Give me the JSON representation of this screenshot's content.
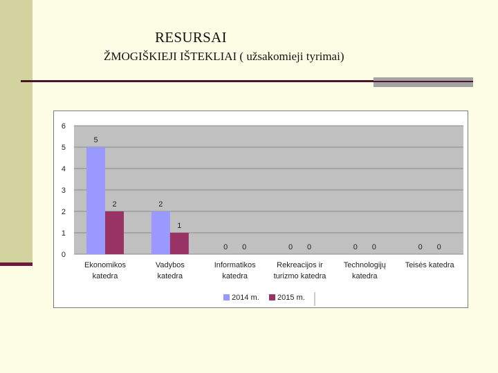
{
  "slide": {
    "title": "RESURSAI",
    "subtitle": "ŽMOGIŠKIEJI IŠTEKLIAI ( užsakomieji tyrimai)"
  },
  "colors": {
    "background": "#fdfde6",
    "accent_bar": "#d3d3a0",
    "rule": "#4a1326",
    "plot_area": "#c0c0c0",
    "series_2014": "#9999ff",
    "series_2015": "#993366"
  },
  "chart_data": {
    "type": "bar",
    "categories": [
      [
        "Ekonomikos",
        "katedra"
      ],
      [
        "Vadybos",
        "katedra"
      ],
      [
        "Informatikos",
        "katedra"
      ],
      [
        "Rekreacijos ir",
        "turizmo katedra"
      ],
      [
        "Technologijų",
        "katedra"
      ],
      [
        "Teisės katedra"
      ]
    ],
    "series": [
      {
        "name": "2014 m.",
        "values": [
          5,
          2,
          0,
          0,
          0,
          0
        ]
      },
      {
        "name": "2015 m.",
        "values": [
          2,
          1,
          0,
          0,
          0,
          0
        ]
      }
    ],
    "ylim": [
      0,
      6
    ],
    "yticks": [
      "0",
      "1",
      "2",
      "3",
      "4",
      "5",
      "6"
    ],
    "grid": true,
    "legend": "bottom-center",
    "data_labels": true
  }
}
